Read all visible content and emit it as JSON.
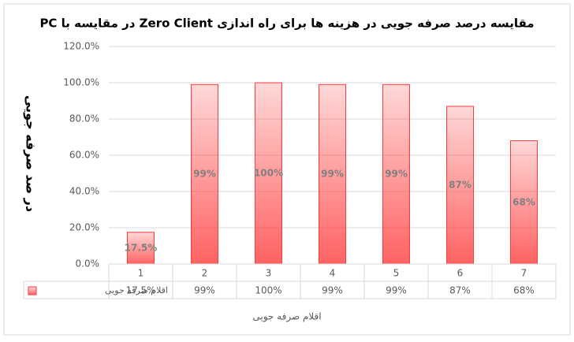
{
  "chart_data": {
    "type": "bar",
    "title": "مقایسه درصد صرفه جویی در هزینه ها برای راه اندازی Zero Client در مقایسه با PC",
    "y_label": "در صد صرفه جویی",
    "x_label": "اقلام صرفه جویی",
    "categories": [
      "1",
      "2",
      "3",
      "4",
      "5",
      "6",
      "7"
    ],
    "series": [
      {
        "name": "اقلام صرفه جویی",
        "color": "#ff3b3b",
        "values": [
          17.5,
          99,
          100,
          99,
          99,
          87,
          68
        ],
        "value_labels": [
          "17.5%",
          "99%",
          "100%",
          "99%",
          "99%",
          "87%",
          "68%"
        ]
      }
    ],
    "ylim": [
      0,
      120
    ],
    "yticks": [
      {
        "value": 0,
        "label": "0.0%"
      },
      {
        "value": 20,
        "label": "20.0%"
      },
      {
        "value": 40,
        "label": "40.0%"
      },
      {
        "value": 60,
        "label": "60.0%"
      },
      {
        "value": 80,
        "label": "80.0%"
      },
      {
        "value": 100,
        "label": "100.0%"
      },
      {
        "value": 120,
        "label": "120.0%"
      }
    ],
    "grid": true,
    "data_table": true
  }
}
